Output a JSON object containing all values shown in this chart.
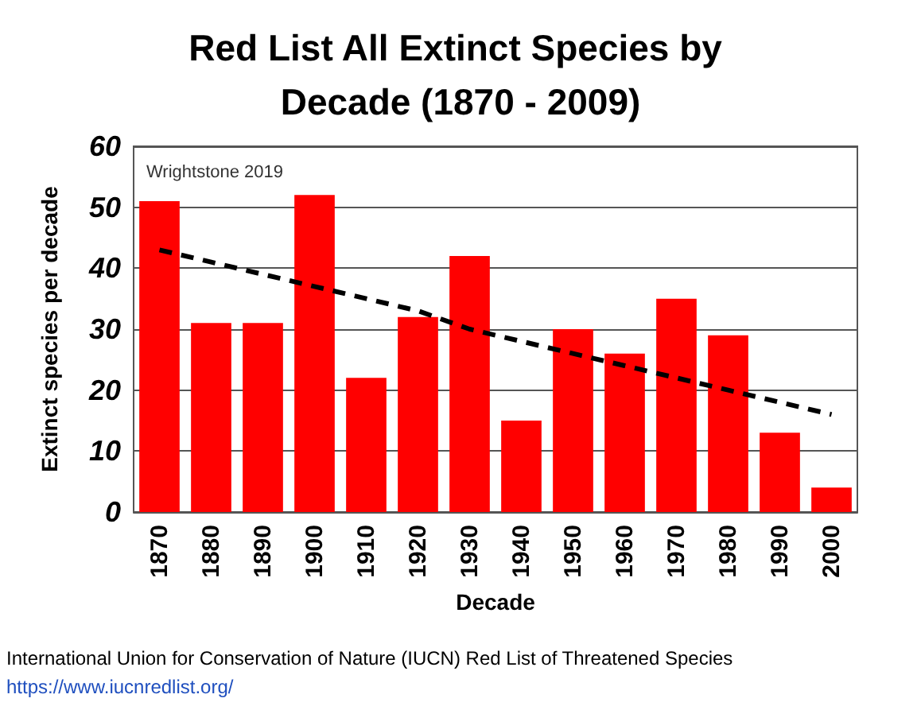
{
  "chart_data": {
    "type": "bar",
    "title": "Red List All Extinct Species by Decade (1870 - 2009)",
    "xlabel": "Decade",
    "ylabel": "Extinct species per decade",
    "categories": [
      "1870",
      "1880",
      "1890",
      "1900",
      "1910",
      "1920",
      "1930",
      "1940",
      "1950",
      "1960",
      "1970",
      "1980",
      "1990",
      "2000"
    ],
    "series": [
      {
        "color": "#ff0000",
        "values": [
          51,
          31,
          31,
          52,
          22,
          32,
          42,
          15,
          30,
          26,
          35,
          29,
          13,
          4
        ]
      },
      {
        "type": "line",
        "color": "#000000",
        "line_style": "dashed",
        "values": [
          43,
          41,
          39,
          37,
          35,
          33,
          30,
          28,
          26,
          24,
          22,
          20,
          18,
          16
        ]
      }
    ],
    "ylim": [
      0,
      60
    ],
    "yticks": [
      0,
      10,
      20,
      30,
      40,
      50,
      60
    ],
    "grid": "y",
    "annotations": [
      "Wrightstone 2019",
      "International Union for Conservation of Nature (IUCN) Red List of Threatened Species",
      "https://www.iucnredlist.org/"
    ]
  }
}
